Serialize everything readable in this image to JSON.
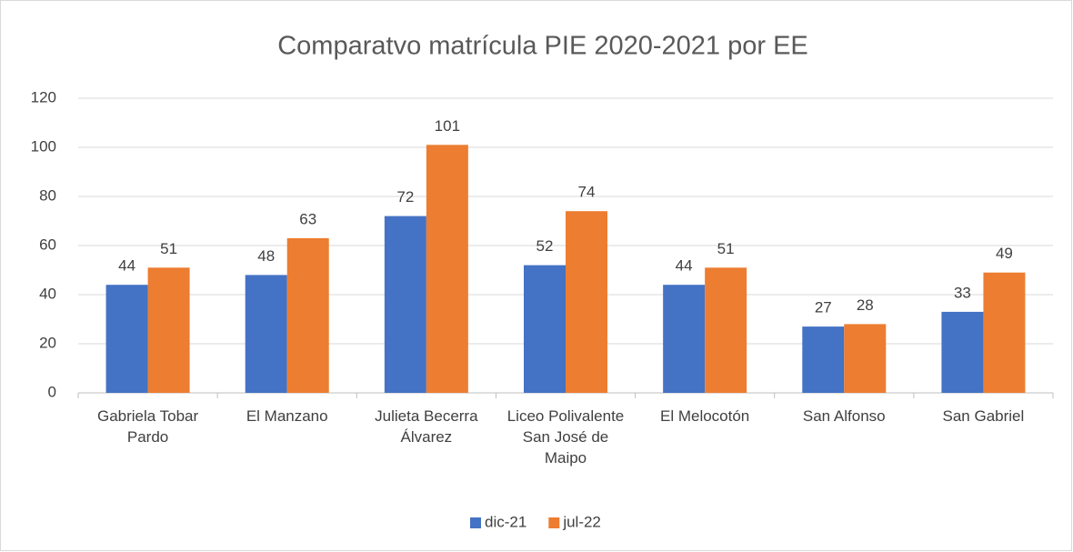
{
  "chart_data": {
    "type": "bar",
    "title": "Comparatvo matrícula PIE 2020-2021 por EE",
    "categories": [
      "Gabriela Tobar Pardo",
      "El Manzano",
      "Julieta Becerra Álvarez",
      "Liceo Polivalente San José de Maipo",
      "El Melocotón",
      "San Alfonso",
      "San Gabriel"
    ],
    "series": [
      {
        "name": "dic-21",
        "color": "#4472c4",
        "values": [
          44,
          48,
          72,
          52,
          44,
          27,
          33
        ]
      },
      {
        "name": "jul-22",
        "color": "#ed7d31",
        "values": [
          51,
          63,
          101,
          74,
          51,
          28,
          49
        ]
      }
    ],
    "ylim": [
      0,
      120
    ],
    "yticks": [
      0,
      20,
      40,
      60,
      80,
      100,
      120
    ],
    "grid": true,
    "legend": "bottom"
  }
}
